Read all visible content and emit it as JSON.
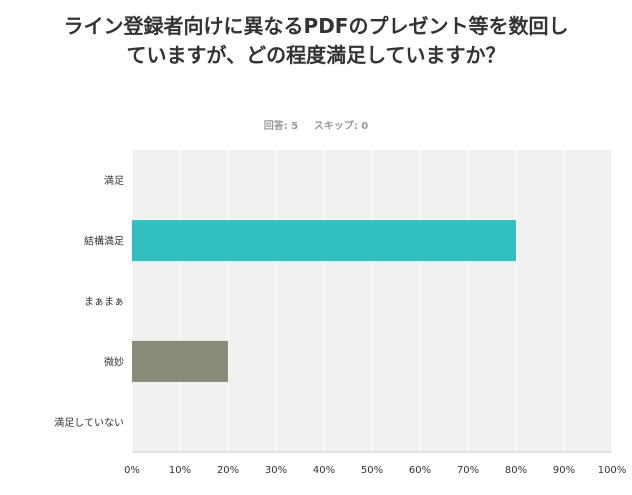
{
  "question": {
    "title": "ライン登録者向けに異なるPDFのプレゼント等を数回していますが、どの程度満足していますか？",
    "answered": "回答: 5",
    "skipped": "スキップ: 0"
  },
  "chart_data": {
    "type": "bar",
    "orientation": "horizontal",
    "title": "ライン登録者向けに異なるPDFのプレゼント等を数回していますが、どの程度満足していますか？",
    "categories": [
      "満足",
      "結構満足",
      "まぁまぁ",
      "微妙",
      "満足していない"
    ],
    "values": [
      0,
      80,
      0,
      20,
      0
    ],
    "unit": "%",
    "xlim": [
      0,
      100
    ],
    "ticks": [
      0,
      10,
      20,
      30,
      40,
      50,
      60,
      70,
      80,
      90,
      100
    ],
    "tick_labels": [
      "0%",
      "10%",
      "20%",
      "30%",
      "40%",
      "50%",
      "60%",
      "70%",
      "80%",
      "90%",
      "100%"
    ],
    "bar_colors": [
      "#31bfc0",
      "#31bfc0",
      "#8a8a78",
      "#8a8a78",
      "#31bfc0"
    ],
    "grid": true,
    "background": "#f1f1f1"
  }
}
